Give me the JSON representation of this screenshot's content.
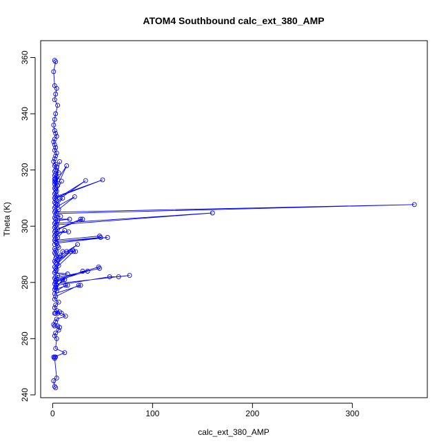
{
  "chart_data": {
    "type": "scatter",
    "title": "ATOM4 Southbound calc_ext_380_AMP",
    "xlabel": "calc_ext_380_AMP",
    "ylabel": "Theta (K)",
    "xlim": [
      -12,
      375
    ],
    "ylim": [
      239,
      366
    ],
    "x_ticks": [
      0,
      100,
      200,
      300
    ],
    "y_ticks": [
      240,
      260,
      280,
      300,
      320,
      340,
      360
    ],
    "x_tick_labels": [
      "0",
      "100",
      "200",
      "300"
    ],
    "y_tick_labels": [
      "240",
      "260",
      "280",
      "300",
      "320",
      "340",
      "360"
    ],
    "grid": false,
    "marker": "open-circle",
    "connected": true,
    "color": "#0000ff",
    "series": [
      {
        "x": [
          2,
          3,
          1,
          2,
          4,
          3,
          2,
          5,
          3,
          2,
          1,
          2,
          3,
          4,
          2,
          1,
          2,
          3,
          2,
          4,
          3,
          2,
          1,
          3,
          2,
          4,
          3,
          2,
          6,
          3,
          2,
          4,
          3,
          2,
          5,
          3,
          2,
          3,
          2,
          14,
          5,
          3,
          7,
          2,
          3,
          4,
          9,
          3,
          2,
          4,
          3,
          50,
          2,
          3,
          33,
          4,
          2,
          3,
          10,
          5,
          3,
          2,
          22,
          6,
          3,
          2,
          362,
          4,
          3,
          8,
          2,
          3,
          17,
          5,
          3,
          2,
          160,
          4,
          3,
          2,
          5,
          28,
          30,
          3,
          2,
          16,
          4,
          3,
          2,
          12,
          5,
          3,
          2,
          47,
          48,
          3,
          55,
          4,
          2,
          5,
          6,
          2,
          3,
          4,
          2,
          3,
          8,
          4,
          3,
          25,
          5,
          2,
          3,
          20,
          18,
          4,
          6,
          2,
          3,
          21,
          23,
          14,
          10,
          4,
          3,
          2,
          15,
          5,
          3,
          2,
          47,
          46,
          4,
          3,
          35,
          30,
          3,
          2,
          77,
          66,
          57,
          4,
          3,
          12,
          10,
          3,
          2,
          15,
          13,
          4,
          2,
          28,
          26,
          3,
          2,
          6,
          3,
          2,
          4,
          7,
          3,
          2,
          5,
          9,
          13,
          4,
          3,
          1,
          2,
          5,
          7,
          6,
          3,
          2,
          4,
          3,
          12,
          2,
          1,
          3,
          2,
          4,
          1,
          2,
          3
        ],
        "y": [
          359,
          358.5,
          355,
          350,
          349,
          347,
          345,
          343,
          340,
          338,
          336,
          334,
          333,
          332,
          331,
          330,
          329,
          328,
          327,
          326,
          325,
          324,
          323,
          322,
          321.5,
          321,
          320,
          319.5,
          319,
          318.5,
          318,
          317.5,
          317,
          316.8,
          316.5,
          316.2,
          316,
          315.5,
          315,
          321.5,
          314.5,
          314,
          323,
          313.5,
          313,
          312.5,
          316,
          312,
          311.5,
          311,
          310.5,
          316.5,
          310,
          309.5,
          316.2,
          309,
          308.5,
          308,
          310,
          307.5,
          307,
          306.5,
          310.5,
          306,
          305.5,
          305,
          307.7,
          304.5,
          304,
          303.5,
          303,
          302.5,
          302.5,
          302,
          301.5,
          301,
          304.7,
          300.5,
          300,
          299.5,
          299,
          302.5,
          302.5,
          298.5,
          298,
          298,
          297.5,
          297,
          296.5,
          298.5,
          296,
          295.5,
          295,
          296.5,
          296,
          294.5,
          296,
          294,
          293.5,
          293,
          292.5,
          292,
          291.5,
          291,
          290.5,
          290,
          289.5,
          289,
          288.5,
          293.5,
          288,
          287.5,
          287,
          291.5,
          291,
          286.5,
          286,
          285.5,
          285,
          291,
          291,
          291,
          291,
          284.5,
          284,
          283.5,
          283,
          282.5,
          282,
          281.5,
          285,
          285.5,
          281,
          280.5,
          284,
          284,
          280,
          279.5,
          282.5,
          282,
          282,
          279,
          278.5,
          281,
          281,
          278,
          277.5,
          279,
          279,
          277,
          276,
          279,
          279,
          275,
          274,
          273,
          272,
          271,
          270,
          269.5,
          269,
          269,
          269,
          269,
          268,
          267,
          266,
          265,
          264.5,
          264.5,
          264,
          263,
          262,
          261,
          260,
          256.5,
          255,
          253.5,
          253.5,
          253.5,
          253,
          246,
          245,
          243,
          242.5
        ]
      }
    ]
  }
}
